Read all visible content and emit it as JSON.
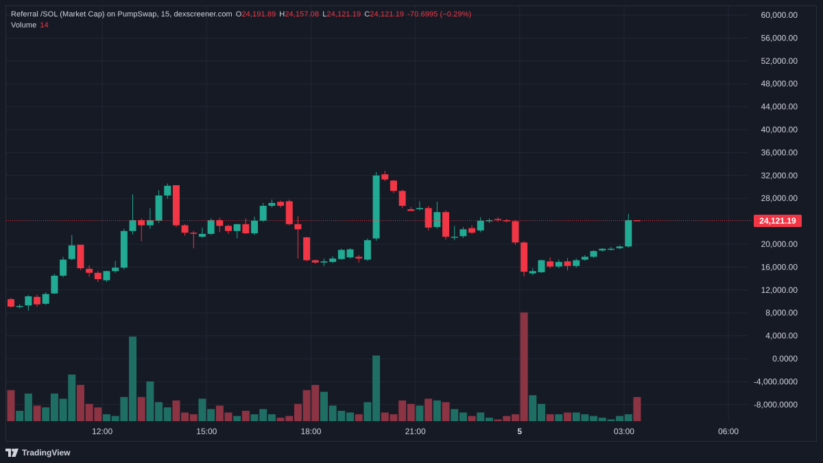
{
  "legend": {
    "symbol": "Referral /SOL (Market Cap) on PumpSwap, 15, dexscreener.com",
    "open_key": "O",
    "open_val": "24,191.89",
    "high_key": "H",
    "high_val": "24,157.08",
    "low_key": "L",
    "low_val": "24,121.19",
    "close_key": "C",
    "close_val": "24,121.19",
    "change": "-70.6995 (−0.29%)",
    "volume_key": "Volume",
    "volume_val": "14"
  },
  "last_price_label": "24,121.19",
  "branding": {
    "text": "TradingView",
    "icon": "tradingview-logo-icon"
  },
  "colors": {
    "background": "#161a25",
    "up": "#22ab94",
    "down": "#f23645",
    "volume_up": "#1f6e64",
    "volume_down": "#8c3344",
    "grid": "#232734",
    "axis_text": "#d1d4dc",
    "last_price_line": "#f23645"
  },
  "chart_data": {
    "type": "candlestick",
    "title": "Referral /SOL (Market Cap) on PumpSwap, 15, dexscreener.com",
    "interval_minutes": 15,
    "y_ticks": [
      "60,000.00",
      "56,000.00",
      "52,000.00",
      "48,000.00",
      "44,000.00",
      "40,000.00",
      "36,000.00",
      "32,000.00",
      "28,000.00",
      "20,000.00",
      "16,000.00",
      "12,000.00",
      "8,000.00",
      "4,000.00",
      "0.0000",
      "-4,000.0000",
      "-8,000.0000"
    ],
    "y_tick_values": [
      60000,
      56000,
      52000,
      48000,
      44000,
      40000,
      36000,
      32000,
      28000,
      20000,
      16000,
      12000,
      8000,
      4000,
      0,
      -4000,
      -8000
    ],
    "ylim": [
      -10500,
      61800
    ],
    "x_tick_labels": [
      "12:00",
      "15:00",
      "18:00",
      "21:00",
      "5",
      "03:00",
      "06:00"
    ],
    "x_tick_slots": [
      10.5,
      22.5,
      34.5,
      46.5,
      58.5,
      70.5,
      82.5
    ],
    "x_slots_total": 92.5,
    "last_price": 24121.19,
    "volume_max": 60,
    "candles": [
      {
        "o": 10400,
        "h": 10600,
        "l": 8900,
        "c": 9100,
        "v": 18
      },
      {
        "o": 9100,
        "h": 9500,
        "l": 8800,
        "c": 9200,
        "v": 6
      },
      {
        "o": 9300,
        "h": 11100,
        "l": 8400,
        "c": 10900,
        "v": 16
      },
      {
        "o": 10800,
        "h": 11200,
        "l": 9100,
        "c": 9500,
        "v": 9
      },
      {
        "o": 9600,
        "h": 11600,
        "l": 9400,
        "c": 11300,
        "v": 8
      },
      {
        "o": 11400,
        "h": 14800,
        "l": 11300,
        "c": 14500,
        "v": 16
      },
      {
        "o": 14500,
        "h": 17800,
        "l": 14200,
        "c": 17300,
        "v": 13
      },
      {
        "o": 17400,
        "h": 21600,
        "l": 17200,
        "c": 19800,
        "v": 27
      },
      {
        "o": 19900,
        "h": 19700,
        "l": 15500,
        "c": 15800,
        "v": 21
      },
      {
        "o": 15700,
        "h": 16300,
        "l": 14300,
        "c": 15000,
        "v": 10
      },
      {
        "o": 15000,
        "h": 15300,
        "l": 13400,
        "c": 13900,
        "v": 8
      },
      {
        "o": 13700,
        "h": 15400,
        "l": 13400,
        "c": 15300,
        "v": 4
      },
      {
        "o": 15300,
        "h": 17100,
        "l": 15000,
        "c": 15900,
        "v": 3
      },
      {
        "o": 15900,
        "h": 22700,
        "l": 15600,
        "c": 22300,
        "v": 14
      },
      {
        "o": 22300,
        "h": 28700,
        "l": 21700,
        "c": 24200,
        "v": 49
      },
      {
        "o": 24200,
        "h": 24500,
        "l": 20500,
        "c": 23300,
        "v": 14
      },
      {
        "o": 23300,
        "h": 26300,
        "l": 22700,
        "c": 24200,
        "v": 23
      },
      {
        "o": 24100,
        "h": 29400,
        "l": 23700,
        "c": 28500,
        "v": 11
      },
      {
        "o": 28500,
        "h": 30600,
        "l": 27900,
        "c": 30200,
        "v": 8
      },
      {
        "o": 30300,
        "h": 30300,
        "l": 23000,
        "c": 23300,
        "v": 12
      },
      {
        "o": 23300,
        "h": 23500,
        "l": 21500,
        "c": 22000,
        "v": 5
      },
      {
        "o": 22000,
        "h": 22300,
        "l": 19300,
        "c": 21900,
        "v": 4
      },
      {
        "o": 21300,
        "h": 22900,
        "l": 21100,
        "c": 21800,
        "v": 13
      },
      {
        "o": 21800,
        "h": 24500,
        "l": 21600,
        "c": 24200,
        "v": 7
      },
      {
        "o": 24200,
        "h": 24600,
        "l": 22100,
        "c": 23200,
        "v": 9
      },
      {
        "o": 23200,
        "h": 23400,
        "l": 21800,
        "c": 22300,
        "v": 5
      },
      {
        "o": 22300,
        "h": 23200,
        "l": 21000,
        "c": 23500,
        "v": 3
      },
      {
        "o": 23500,
        "h": 24500,
        "l": 21800,
        "c": 21900,
        "v": 6
      },
      {
        "o": 21900,
        "h": 24800,
        "l": 21600,
        "c": 24100,
        "v": 4
      },
      {
        "o": 24100,
        "h": 27200,
        "l": 23900,
        "c": 26700,
        "v": 7
      },
      {
        "o": 26700,
        "h": 27800,
        "l": 26400,
        "c": 27200,
        "v": 4
      },
      {
        "o": 27400,
        "h": 27600,
        "l": 26400,
        "c": 26700,
        "v": 2
      },
      {
        "o": 27500,
        "h": 27800,
        "l": 23300,
        "c": 23500,
        "v": 3
      },
      {
        "o": 23500,
        "h": 24900,
        "l": 17500,
        "c": 22600,
        "v": 10
      },
      {
        "o": 21200,
        "h": 21300,
        "l": 17000,
        "c": 17200,
        "v": 18
      },
      {
        "o": 17200,
        "h": 17300,
        "l": 16600,
        "c": 16800,
        "v": 21
      },
      {
        "o": 16800,
        "h": 17500,
        "l": 16200,
        "c": 17000,
        "v": 17
      },
      {
        "o": 16900,
        "h": 17900,
        "l": 16700,
        "c": 17500,
        "v": 9
      },
      {
        "o": 17400,
        "h": 19200,
        "l": 17300,
        "c": 19000,
        "v": 6
      },
      {
        "o": 17700,
        "h": 19300,
        "l": 17500,
        "c": 19100,
        "v": 5
      },
      {
        "o": 17800,
        "h": 18100,
        "l": 16800,
        "c": 17500,
        "v": 4
      },
      {
        "o": 17300,
        "h": 21000,
        "l": 17100,
        "c": 20700,
        "v": 11
      },
      {
        "o": 21000,
        "h": 32600,
        "l": 20600,
        "c": 32000,
        "v": 38
      },
      {
        "o": 32200,
        "h": 32800,
        "l": 31000,
        "c": 31300,
        "v": 5
      },
      {
        "o": 31100,
        "h": 31200,
        "l": 28900,
        "c": 29300,
        "v": 4
      },
      {
        "o": 29300,
        "h": 29500,
        "l": 26300,
        "c": 26700,
        "v": 12
      },
      {
        "o": 26100,
        "h": 26500,
        "l": 25800,
        "c": 25800,
        "v": 10
      },
      {
        "o": 26100,
        "h": 27500,
        "l": 25900,
        "c": 26300,
        "v": 9
      },
      {
        "o": 26300,
        "h": 26700,
        "l": 22400,
        "c": 22900,
        "v": 13
      },
      {
        "o": 23000,
        "h": 27400,
        "l": 22700,
        "c": 25600,
        "v": 12
      },
      {
        "o": 25600,
        "h": 25900,
        "l": 20800,
        "c": 21300,
        "v": 11
      },
      {
        "o": 21300,
        "h": 23200,
        "l": 20700,
        "c": 21300,
        "v": 7
      },
      {
        "o": 21400,
        "h": 23000,
        "l": 21100,
        "c": 22600,
        "v": 5
      },
      {
        "o": 22800,
        "h": 23300,
        "l": 21800,
        "c": 22000,
        "v": 3
      },
      {
        "o": 22400,
        "h": 24700,
        "l": 22100,
        "c": 24100,
        "v": 5
      },
      {
        "o": 24000,
        "h": 24500,
        "l": 23700,
        "c": 24200,
        "v": 2
      },
      {
        "o": 24400,
        "h": 24700,
        "l": 23900,
        "c": 24300,
        "v": 1
      },
      {
        "o": 24200,
        "h": 24400,
        "l": 23800,
        "c": 24000,
        "v": 3
      },
      {
        "o": 24000,
        "h": 24200,
        "l": 19900,
        "c": 20300,
        "v": 4
      },
      {
        "o": 20300,
        "h": 20500,
        "l": 14400,
        "c": 15200,
        "v": 63
      },
      {
        "o": 14900,
        "h": 15800,
        "l": 14600,
        "c": 15300,
        "v": 15
      },
      {
        "o": 15100,
        "h": 17300,
        "l": 15000,
        "c": 17200,
        "v": 10
      },
      {
        "o": 17000,
        "h": 17700,
        "l": 15800,
        "c": 16100,
        "v": 4
      },
      {
        "o": 16100,
        "h": 17300,
        "l": 15800,
        "c": 16900,
        "v": 4
      },
      {
        "o": 17000,
        "h": 17600,
        "l": 15400,
        "c": 16200,
        "v": 5
      },
      {
        "o": 16200,
        "h": 17500,
        "l": 15900,
        "c": 17200,
        "v": 5
      },
      {
        "o": 17300,
        "h": 18100,
        "l": 17100,
        "c": 17800,
        "v": 4
      },
      {
        "o": 17800,
        "h": 19000,
        "l": 17600,
        "c": 18800,
        "v": 3
      },
      {
        "o": 18900,
        "h": 19300,
        "l": 18700,
        "c": 19200,
        "v": 2
      },
      {
        "o": 19100,
        "h": 19500,
        "l": 18900,
        "c": 19200,
        "v": 1
      },
      {
        "o": 19300,
        "h": 19800,
        "l": 19100,
        "c": 19600,
        "v": 3
      },
      {
        "o": 19600,
        "h": 25300,
        "l": 19400,
        "c": 24200,
        "v": 4
      },
      {
        "o": 24191.89,
        "h": 24157.08,
        "l": 24121.19,
        "c": 24121.19,
        "v": 14
      }
    ]
  }
}
